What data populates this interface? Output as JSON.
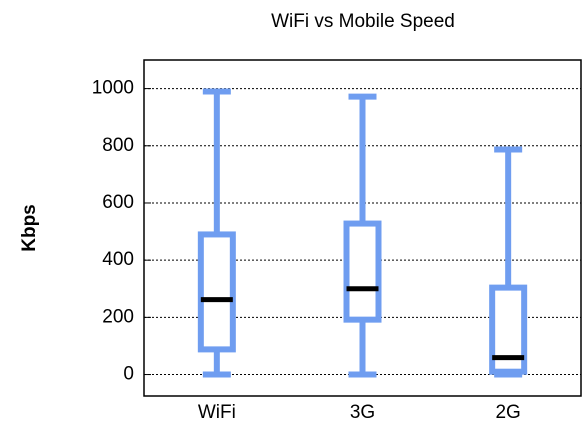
{
  "chart_data": {
    "type": "box",
    "title": "WiFi vs Mobile Speed",
    "y_label": "Kbps",
    "categories": [
      "WiFi",
      "3G",
      "2G"
    ],
    "min": [
      0,
      0,
      0
    ],
    "q1": [
      88,
      192,
      10
    ],
    "median": [
      262,
      300,
      59
    ],
    "q3": [
      490,
      528,
      304
    ],
    "max": [
      990,
      972,
      787
    ],
    "color": "#6f9df0",
    "median_color": "#000000",
    "ylim": [
      -75,
      1100
    ],
    "yticks": [
      0,
      200,
      400,
      600,
      800,
      1000
    ],
    "grid": true
  }
}
